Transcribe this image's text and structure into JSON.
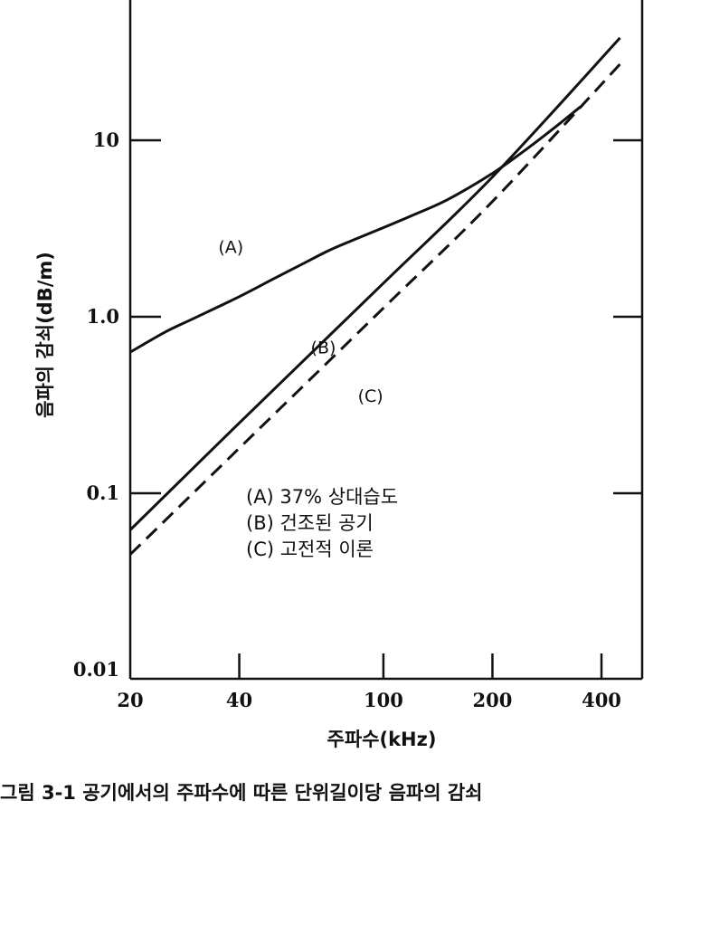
{
  "chart_data": {
    "type": "line",
    "title": "",
    "xlabel": "주파수(kHz)",
    "ylabel": "음파의 감쇠(dB/m)",
    "x_scale": "log",
    "y_scale": "log",
    "xlim": [
      20,
      450
    ],
    "ylim": [
      0.01,
      80
    ],
    "x_ticks": [
      20,
      40,
      100,
      200,
      400
    ],
    "x_tick_labels": [
      "20",
      "40",
      "100",
      "200",
      "400"
    ],
    "y_ticks": [
      0.01,
      0.1,
      1.0,
      10
    ],
    "y_tick_labels": [
      "0.01",
      "0.1",
      "1.0",
      "10"
    ],
    "grid": false,
    "legend_position": "center",
    "legend": [
      "(A) 37% 상대습도",
      "(B) 건조된 공기",
      "(C) 고전적 이론"
    ],
    "series": [
      {
        "name": "(A)",
        "style": "solid",
        "x": [
          20,
          25,
          30,
          40,
          50,
          60,
          70,
          80,
          100,
          120,
          150,
          200,
          250,
          300,
          350
        ],
        "y": [
          0.63,
          0.82,
          0.98,
          1.3,
          1.65,
          2.0,
          2.35,
          2.65,
          3.2,
          3.75,
          4.6,
          6.5,
          9.0,
          12.0,
          15.5
        ]
      },
      {
        "name": "(B)",
        "style": "solid",
        "x": [
          20,
          40,
          100,
          200,
          450
        ],
        "y": [
          0.062,
          0.25,
          1.55,
          6.2,
          38
        ]
      },
      {
        "name": "(C)",
        "style": "dashed",
        "x": [
          20,
          40,
          100,
          200,
          450
        ],
        "y": [
          0.045,
          0.18,
          1.12,
          4.5,
          27
        ]
      }
    ],
    "colors": {
      "line": "#111111",
      "background": "#ffffff"
    }
  },
  "caption": "그림 3-1  공기에서의 주파수에 따른 단위길이당 음파의 감쇠"
}
